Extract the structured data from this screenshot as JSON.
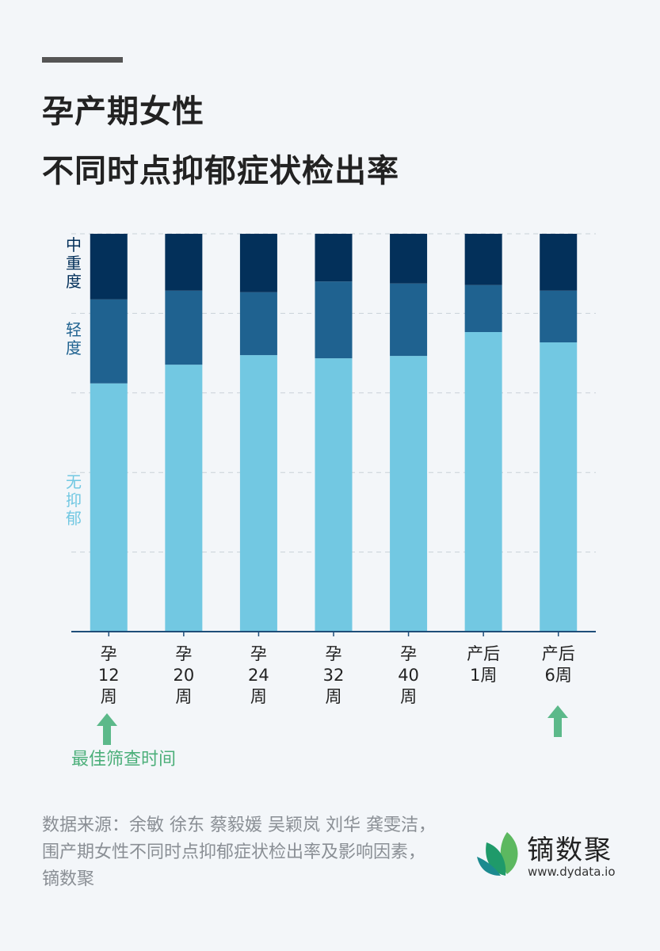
{
  "title_line1": "孕产期女性",
  "title_line2": "不同时点抑郁症状检出率",
  "chart_data": {
    "type": "bar",
    "stacked": true,
    "normalized_percent": true,
    "ylim": [
      0,
      100
    ],
    "grid": true,
    "categories": [
      "孕\n12\n周",
      "孕\n20\n周",
      "孕\n24\n周",
      "孕\n32\n周",
      "孕\n40\n周",
      "产后\n1周",
      "产后\n6周"
    ],
    "series": [
      {
        "name": "无抑郁",
        "color": "#72c8e2",
        "values": [
          62.4,
          67.1,
          69.5,
          68.7,
          69.3,
          75.3,
          72.7
        ]
      },
      {
        "name": "轻度",
        "color": "#1f6290",
        "values": [
          21.1,
          18.6,
          15.8,
          19.3,
          18.2,
          11.8,
          13.0
        ]
      },
      {
        "name": "中重度",
        "color": "#03305a",
        "values": [
          16.5,
          14.3,
          14.7,
          12.0,
          12.5,
          12.9,
          14.3
        ]
      }
    ],
    "annotation": "最佳筛查时间",
    "annotation_color": "#4caf7a",
    "annotated_categories": [
      "孕\n12\n周",
      "产后\n6周"
    ]
  },
  "source": "数据来源：余敏 徐东 蔡毅媛 吴颖岚 刘华 龚雯洁，围产期女性不同时点抑郁症状检出率及影响因素，镝数聚",
  "logo": {
    "name": "镝数聚",
    "url": "www.dydata.io"
  }
}
